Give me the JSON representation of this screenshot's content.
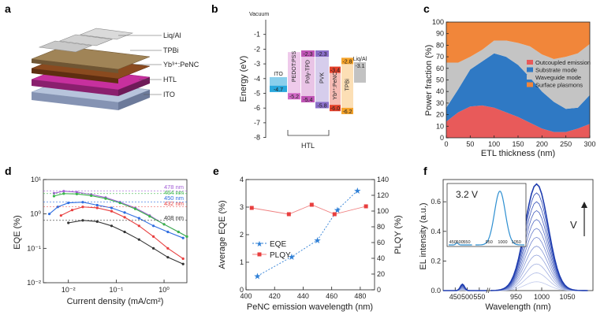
{
  "panels": {
    "a": {
      "label": "a",
      "layers": [
        "Liq/Al",
        "TPBi",
        "Yb³⁺:PeNC",
        "HTL",
        "ITO"
      ]
    },
    "b": {
      "label": "b",
      "vacuum_label": "Vacuum",
      "ylabel": "Energy (eV)",
      "yticks": [
        "-1",
        "-2",
        "-3",
        "-4",
        "-5",
        "-6",
        "-7",
        "-8"
      ],
      "htl_label": "HTL",
      "materials": [
        {
          "name": "ITO",
          "top": "-4.7",
          "bottom": "",
          "color": "#29a8dd"
        },
        {
          "name": "PEDOT:PSS",
          "top": "",
          "bottom": "-5.2",
          "color": "#d268c6"
        },
        {
          "name": "Poly-TPD",
          "top": "-2.3",
          "bottom": "-5.4",
          "color": "#c055b6"
        },
        {
          "name": "PVK",
          "top": "-2.3",
          "bottom": "-5.8",
          "color": "#8a6fc9"
        },
        {
          "name": "Yb³⁺:PeNC",
          "top": "-3.4",
          "bottom": "-6.0",
          "color": "#e4402a"
        },
        {
          "name": "TPBi",
          "top": "-2.8",
          "bottom": "-6.2",
          "color": "#f5a32a"
        },
        {
          "name": "Liq/Al",
          "top": "-3.1",
          "bottom": "",
          "color": "#9a9a9a"
        }
      ]
    },
    "c": {
      "label": "c",
      "legend": [
        "Outcoupled emission",
        "Substrate mode",
        "Waveguide mode",
        "Surface plasmons"
      ],
      "colors": [
        "#e85a5a",
        "#2f79c4",
        "#c4c4c4",
        "#f1863a"
      ]
    },
    "d": {
      "label": "d",
      "series_labels": [
        "478 nm",
        "464 nm",
        "450 nm",
        "432 nm",
        "408 nm"
      ],
      "colors": [
        "#a35fd6",
        "#3ab54a",
        "#2e6de0",
        "#e83e3e",
        "#333333"
      ]
    },
    "e": {
      "label": "e",
      "legend": [
        "EQE",
        "PLQY"
      ]
    },
    "f": {
      "label": "f",
      "inset_voltage": "3.2 V",
      "arrow_label": "V",
      "inset_ticks": [
        "450",
        "500",
        "550",
        "950",
        "1000",
        "1050"
      ]
    }
  },
  "chart_data": [
    {
      "panel": "c",
      "type": "area",
      "title": "",
      "xlabel": "ETL thickness (nm)",
      "ylabel": "Power fraction (%)",
      "xlim": [
        0,
        300
      ],
      "ylim": [
        0,
        100
      ],
      "xticks": [
        0,
        50,
        100,
        150,
        200,
        250,
        300
      ],
      "yticks": [
        0,
        10,
        20,
        30,
        40,
        50,
        60,
        70,
        80,
        90,
        100
      ],
      "x": [
        0,
        25,
        50,
        75,
        100,
        125,
        150,
        175,
        200,
        225,
        250,
        275,
        300
      ],
      "series": [
        {
          "name": "Outcoupled emission",
          "values": [
            14,
            22,
            27,
            28,
            26,
            22,
            18,
            13,
            8,
            5,
            5,
            8,
            12
          ]
        },
        {
          "name": "Substrate mode",
          "values": [
            12,
            20,
            32,
            38,
            47,
            48,
            45,
            39,
            32,
            26,
            20,
            18,
            25
          ]
        },
        {
          "name": "Waveguide mode",
          "values": [
            39,
            23,
            11,
            10,
            11,
            14,
            19,
            27,
            32,
            37,
            45,
            47,
            44
          ]
        },
        {
          "name": "Surface plasmons",
          "values": [
            35,
            35,
            30,
            24,
            16,
            16,
            18,
            21,
            28,
            32,
            30,
            27,
            19
          ]
        }
      ]
    },
    {
      "panel": "d",
      "type": "line",
      "xlabel": "Current density (mA/cm²)",
      "ylabel": "EQE (%)",
      "xscale": "log",
      "yscale": "log",
      "xlim": [
        0.003,
        3
      ],
      "ylim": [
        0.01,
        10
      ],
      "xticks": [
        "10⁻²",
        "10⁻¹",
        "10⁰"
      ],
      "yticks": [
        "10⁻²",
        "10⁻¹",
        "10⁰",
        "10¹"
      ],
      "series": [
        {
          "name": "478 nm",
          "x": [
            0.005,
            0.008,
            0.015,
            0.03,
            0.06,
            0.12,
            0.25,
            0.5,
            1,
            2,
            3
          ],
          "values": [
            4.0,
            4.6,
            4.3,
            3.7,
            3.0,
            2.2,
            1.5,
            0.9,
            0.5,
            0.3,
            0.22
          ]
        },
        {
          "name": "464 nm",
          "x": [
            0.005,
            0.008,
            0.015,
            0.03,
            0.06,
            0.12,
            0.25,
            0.5,
            1,
            2,
            3
          ],
          "values": [
            3.3,
            3.9,
            3.8,
            3.4,
            2.8,
            2.1,
            1.4,
            0.85,
            0.5,
            0.3,
            0.22
          ]
        },
        {
          "name": "450 nm",
          "x": [
            0.004,
            0.006,
            0.01,
            0.02,
            0.04,
            0.08,
            0.15,
            0.3,
            0.6,
            1.2,
            2.5
          ],
          "values": [
            1.0,
            1.6,
            2.1,
            2.2,
            1.8,
            1.5,
            1.1,
            0.75,
            0.45,
            0.3,
            0.2
          ]
        },
        {
          "name": "432 nm",
          "x": [
            0.007,
            0.012,
            0.02,
            0.04,
            0.08,
            0.15,
            0.3,
            0.6,
            1.2,
            2.5
          ],
          "values": [
            0.9,
            1.3,
            1.6,
            1.5,
            1.2,
            0.8,
            0.45,
            0.22,
            0.1,
            0.05
          ]
        },
        {
          "name": "408 nm",
          "x": [
            0.01,
            0.02,
            0.04,
            0.08,
            0.15,
            0.3,
            0.6,
            1.2,
            2.5
          ],
          "values": [
            0.55,
            0.65,
            0.6,
            0.45,
            0.3,
            0.18,
            0.1,
            0.055,
            0.035
          ]
        }
      ]
    },
    {
      "panel": "e",
      "type": "line",
      "xlabel": "PeNC emission wavelength (nm)",
      "ylabel": "Average EQE (%)",
      "y2label": "PLQY (%)",
      "xlim": [
        400,
        490
      ],
      "xticks": [
        400,
        420,
        440,
        460,
        480
      ],
      "ylim": [
        0,
        4
      ],
      "yticks": [
        0,
        1,
        2,
        3,
        4
      ],
      "y2lim": [
        0,
        140
      ],
      "y2ticks": [
        0,
        20,
        40,
        60,
        80,
        100,
        120,
        140
      ],
      "series": [
        {
          "name": "EQE",
          "axis": "left",
          "x": [
            408,
            432,
            450,
            464,
            478
          ],
          "values": [
            0.5,
            1.2,
            1.8,
            2.9,
            3.6
          ]
        },
        {
          "name": "PLQY",
          "axis": "right",
          "x": [
            404,
            430,
            446,
            462,
            484
          ],
          "values": [
            104,
            96,
            108,
            96,
            106
          ]
        }
      ]
    },
    {
      "panel": "f",
      "type": "line",
      "xlabel": "Wavelength (nm)",
      "ylabel": "EL intensity (a.u.)",
      "xlim": [
        400,
        1100
      ],
      "ylim": [
        0,
        0.75
      ],
      "xticks": [
        450,
        500,
        550,
        950,
        1000,
        1050
      ],
      "yticks": [
        0.0,
        0.2,
        0.4,
        0.6
      ],
      "note": "Family of EL spectra at increasing voltage; main peak near 990 nm, weak peak near 480 nm",
      "peak_max_values": [
        0.06,
        0.12,
        0.18,
        0.24,
        0.3,
        0.36,
        0.42,
        0.48,
        0.54,
        0.6,
        0.66,
        0.72
      ]
    }
  ]
}
